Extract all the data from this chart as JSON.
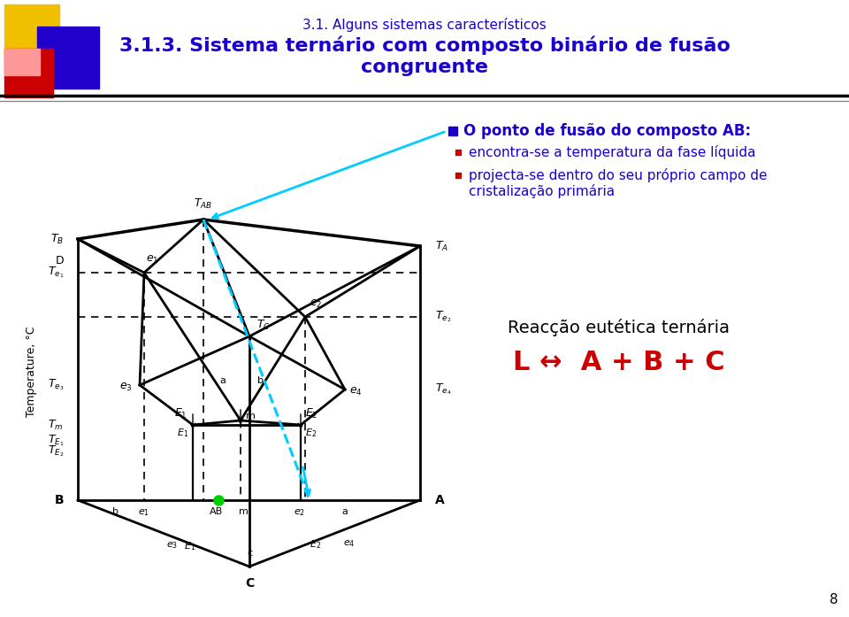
{
  "title_sub": "3.1. Alguns sistemas característicos",
  "title_main": "3.1.3. Sistema ternário com composto binário de fusão\ncongruente",
  "title_color": "#1a00cc",
  "bg_color": "#ffffff",
  "bullet1": "O ponto de fusão do composto AB:",
  "bullet2": "encontra-se a temperatura da fase líquida",
  "bullet3a": "projecta-se dentro do seu próprio campo de",
  "bullet3b": "cristalização primária",
  "reaction_title": "Reacção eutética ternária",
  "reaction_eq": "L ↔  A + B + C",
  "reaction_color": "#cc0000",
  "page_num": "8",
  "line_color": "#000000",
  "dashed_color": "#000000",
  "cyan_color": "#00ccff",
  "green_dot_color": "#00cc00"
}
